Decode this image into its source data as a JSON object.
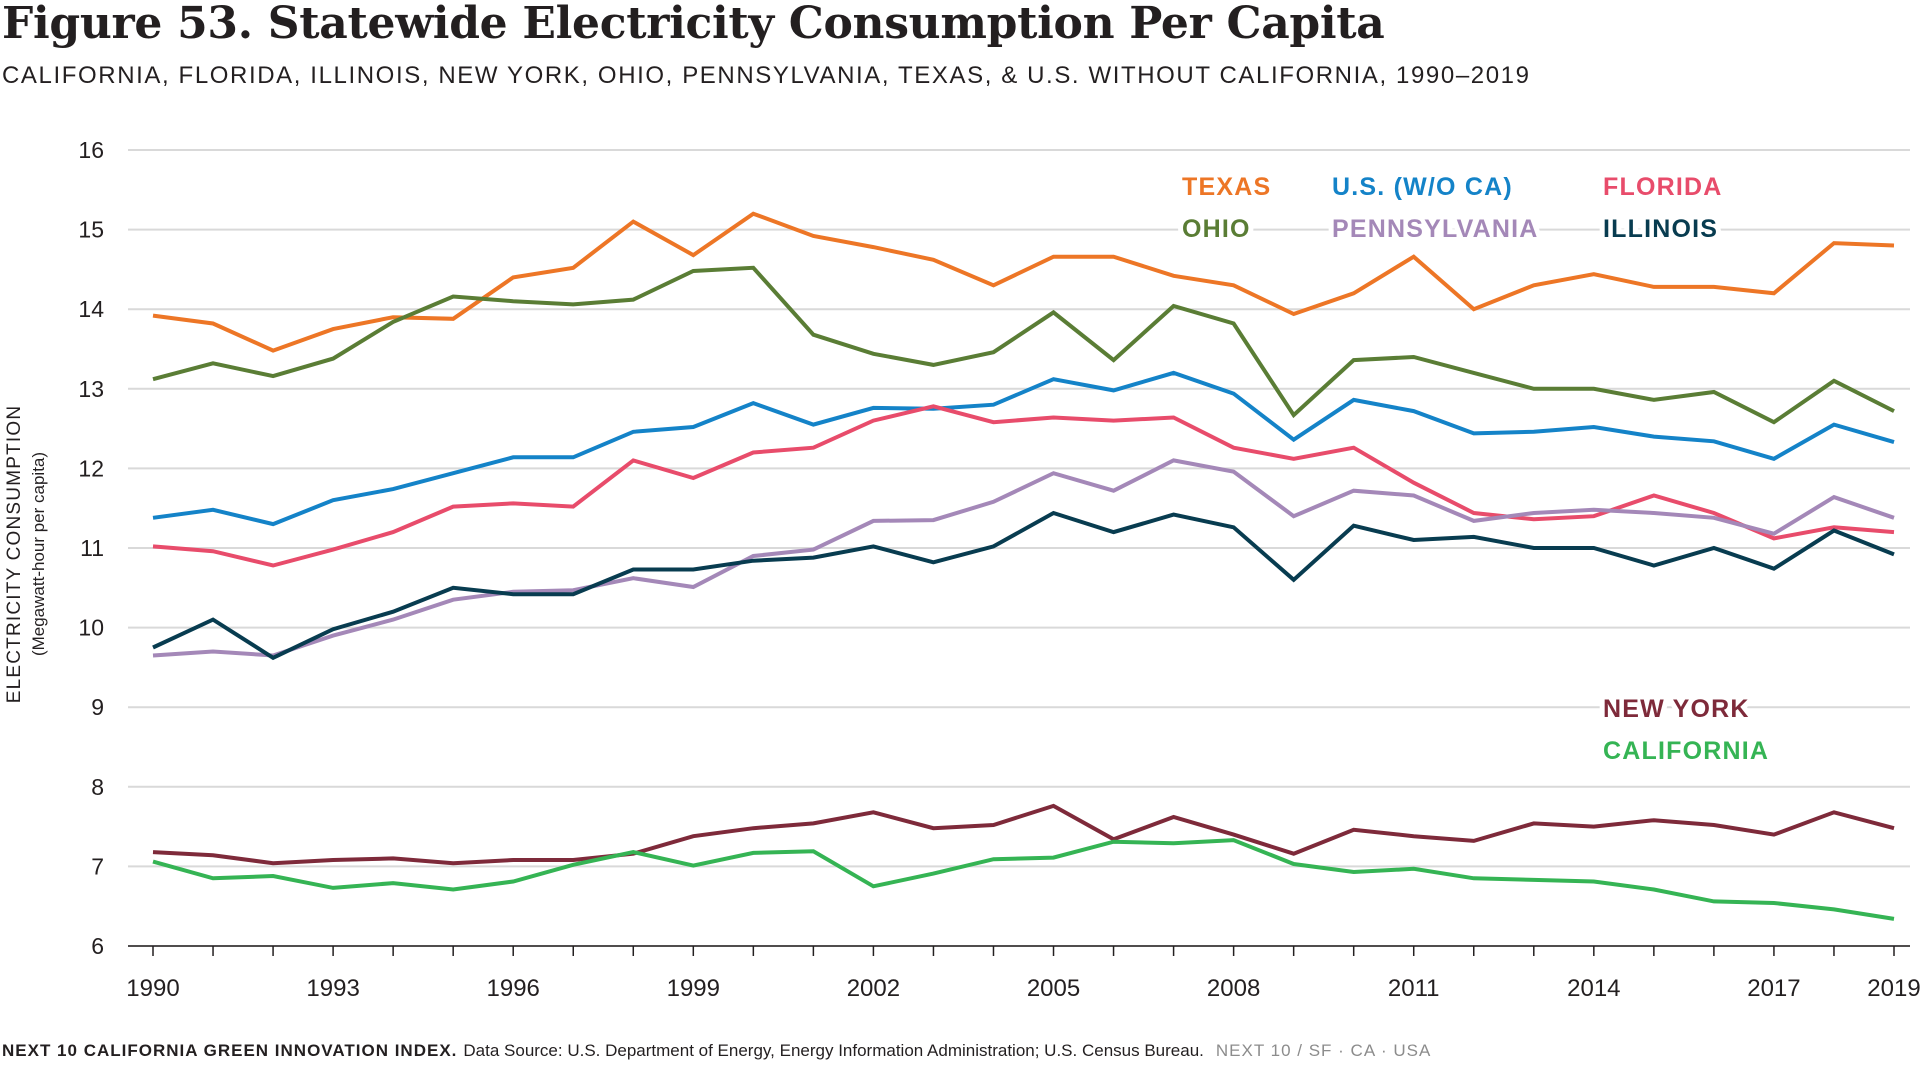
{
  "header": {
    "title": "Figure 53. Statewide Electricity Consumption Per Capita",
    "subtitle": "CALIFORNIA, FLORIDA, ILLINOIS, NEW YORK, OHIO, PENNSYLVANIA, TEXAS, & U.S. WITHOUT CALIFORNIA, 1990–2019"
  },
  "footer": {
    "org": "NEXT 10 CALIFORNIA GREEN INNOVATION INDEX.",
    "source": "Data Source: U.S. Department of Energy, Energy Information Administration; U.S. Census Bureau.",
    "brand": "NEXT 10  /  SF · CA · USA"
  },
  "chart_data": {
    "type": "line",
    "ylabel": "ELECTRICITY CONSUMPTION",
    "ylabel_sub": "(Megawatt-hour per capita)",
    "xlabel": "",
    "ylim": [
      6,
      16
    ],
    "xlim": [
      1990,
      2019
    ],
    "yticks": [
      6,
      7,
      8,
      9,
      10,
      11,
      12,
      13,
      14,
      15,
      16
    ],
    "xticks": [
      1990,
      1993,
      1996,
      1999,
      2002,
      2005,
      2008,
      2011,
      2014,
      2017,
      2019
    ],
    "grid": true,
    "legend": "inline labels, upper-right and lower-right",
    "x": [
      1990,
      1991,
      1992,
      1993,
      1994,
      1995,
      1996,
      1997,
      1998,
      1999,
      2000,
      2001,
      2002,
      2003,
      2004,
      2005,
      2006,
      2007,
      2008,
      2009,
      2010,
      2011,
      2012,
      2013,
      2014,
      2015,
      2016,
      2017,
      2018,
      2019
    ],
    "series": [
      {
        "name": "TEXAS",
        "color": "#ed7626",
        "values": [
          13.92,
          13.82,
          13.48,
          13.75,
          13.9,
          13.88,
          14.4,
          14.52,
          15.1,
          14.68,
          15.2,
          14.92,
          14.78,
          14.62,
          14.3,
          14.66,
          14.66,
          14.42,
          14.3,
          13.94,
          14.2,
          14.66,
          14.0,
          14.3,
          14.44,
          14.28,
          14.28,
          14.2,
          14.83,
          14.8
        ]
      },
      {
        "name": "OHIO",
        "color": "#5a7d35",
        "values": [
          13.12,
          13.32,
          13.16,
          13.38,
          13.84,
          14.16,
          14.1,
          14.06,
          14.12,
          14.48,
          14.52,
          13.68,
          13.44,
          13.3,
          13.46,
          13.96,
          13.36,
          14.04,
          13.82,
          12.67,
          13.36,
          13.4,
          13.2,
          13.0,
          13.0,
          12.86,
          12.96,
          12.58,
          13.1,
          12.72
        ]
      },
      {
        "name": "U.S. (W/O CA)",
        "color": "#1483c8",
        "values": [
          11.38,
          11.48,
          11.3,
          11.6,
          11.74,
          11.94,
          12.14,
          12.14,
          12.46,
          12.52,
          12.82,
          12.55,
          12.76,
          12.75,
          12.8,
          13.12,
          12.98,
          13.2,
          12.94,
          12.36,
          12.86,
          12.72,
          12.44,
          12.46,
          12.52,
          12.4,
          12.34,
          12.12,
          12.55,
          12.33
        ]
      },
      {
        "name": "FLORIDA",
        "color": "#e84c6b",
        "values": [
          11.02,
          10.96,
          10.78,
          10.98,
          11.2,
          11.52,
          11.56,
          11.52,
          12.1,
          11.88,
          12.2,
          12.26,
          12.6,
          12.78,
          12.58,
          12.64,
          12.6,
          12.64,
          12.26,
          12.12,
          12.26,
          11.82,
          11.44,
          11.36,
          11.4,
          11.66,
          11.44,
          11.12,
          11.26,
          11.2
        ]
      },
      {
        "name": "PENNSYLVANIA",
        "color": "#a488b8",
        "values": [
          9.65,
          9.7,
          9.65,
          9.9,
          10.1,
          10.35,
          10.45,
          10.47,
          10.62,
          10.51,
          10.9,
          10.98,
          11.34,
          11.35,
          11.58,
          11.94,
          11.72,
          12.1,
          11.96,
          11.4,
          11.72,
          11.66,
          11.34,
          11.44,
          11.48,
          11.44,
          11.38,
          11.18,
          11.64,
          11.38
        ]
      },
      {
        "name": "ILLINOIS",
        "color": "#083c50",
        "values": [
          9.75,
          10.1,
          9.62,
          9.98,
          10.2,
          10.5,
          10.42,
          10.42,
          10.73,
          10.73,
          10.84,
          10.88,
          11.02,
          10.82,
          11.02,
          11.44,
          11.2,
          11.42,
          11.26,
          10.6,
          11.28,
          11.1,
          11.14,
          11.0,
          11.0,
          10.78,
          11.0,
          10.74,
          11.22,
          10.92
        ]
      },
      {
        "name": "NEW YORK",
        "color": "#7e2a3a",
        "values": [
          7.18,
          7.14,
          7.04,
          7.08,
          7.1,
          7.04,
          7.08,
          7.08,
          7.16,
          7.38,
          7.48,
          7.54,
          7.68,
          7.48,
          7.52,
          7.76,
          7.34,
          7.62,
          7.4,
          7.16,
          7.46,
          7.38,
          7.32,
          7.54,
          7.5,
          7.58,
          7.52,
          7.4,
          7.68,
          7.48
        ]
      },
      {
        "name": "CALIFORNIA",
        "color": "#35b454",
        "values": [
          7.06,
          6.85,
          6.88,
          6.73,
          6.79,
          6.71,
          6.81,
          7.02,
          7.18,
          7.01,
          7.17,
          7.19,
          6.75,
          6.91,
          7.09,
          7.11,
          7.31,
          7.29,
          7.33,
          7.03,
          6.93,
          6.97,
          6.85,
          6.83,
          6.81,
          6.71,
          6.56,
          6.54,
          6.46,
          6.34
        ]
      }
    ]
  }
}
